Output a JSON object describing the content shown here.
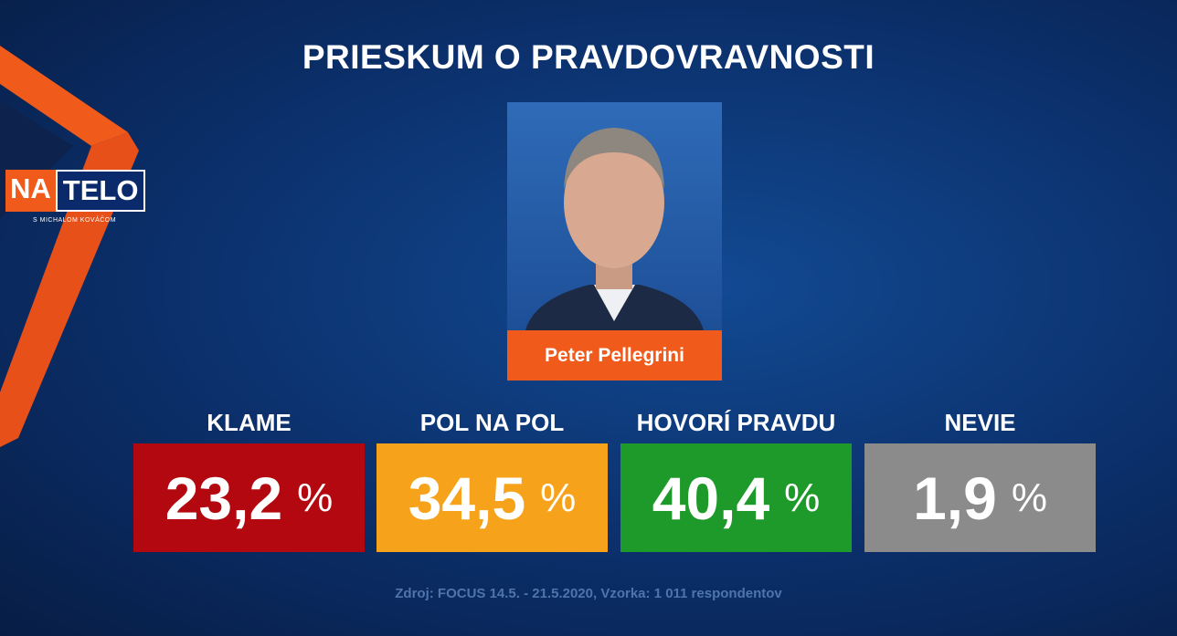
{
  "header": {
    "title": "PRIESKUM O PRAVDOVRAVNOSTI"
  },
  "logo": {
    "left": "NA",
    "right": "TELO",
    "tagline": "S MICHALOM KOVÁČOM"
  },
  "person": {
    "name": "Peter Pellegrini"
  },
  "results": [
    {
      "label": "KLAME",
      "value": "23,2",
      "unit": "%"
    },
    {
      "label": "POL NA POL",
      "value": "34,5",
      "unit": "%"
    },
    {
      "label": "HOVORÍ PRAVDU",
      "value": "40,4",
      "unit": "%"
    },
    {
      "label": "NEVIE",
      "value": "1,9",
      "unit": "%"
    }
  ],
  "footer": {
    "source": "Zdroj: FOCUS 14.5. - 21.5.2020, Vzorka: 1 011 respondentov"
  }
}
